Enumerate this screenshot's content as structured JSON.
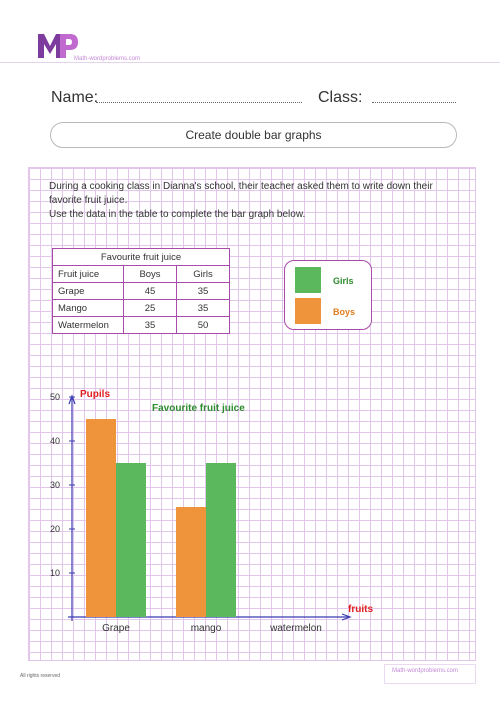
{
  "brand": {
    "logo": "MP",
    "site": "Math-wordproblems.com",
    "colors": {
      "purple": "#7e3b9e",
      "pink": "#c06ad0"
    }
  },
  "header": {
    "name_label": "Name:",
    "class_label": "Class:"
  },
  "worksheet": {
    "title": "Create double bar graphs",
    "instructions": [
      "During a cooking class in Dianna's school, their teacher asked them to write down their",
      "favorite fruit juice.",
      "Use the data in the table to complete the bar graph below."
    ]
  },
  "table": {
    "caption": "Favourite fruit juice",
    "headers": [
      "Fruit juice",
      "Boys",
      "Girls"
    ],
    "rows": [
      [
        "Grape",
        "45",
        "35"
      ],
      [
        "Mango",
        "25",
        "35"
      ],
      [
        "Watermelon",
        "35",
        "50"
      ]
    ]
  },
  "legend": {
    "items": [
      {
        "label": "Girls",
        "color": "#5cb85c",
        "text_color": "#2e8b2e"
      },
      {
        "label": "Boys",
        "color": "#f0943c",
        "text_color": "#e07b20"
      }
    ]
  },
  "chart_data": {
    "type": "bar",
    "title": "Favourite fruit juice",
    "ylabel": "Pupils",
    "xlabel": "fruits",
    "categories": [
      "Grape",
      "mango",
      "watermelon"
    ],
    "series": [
      {
        "name": "Boys",
        "color": "#f0943c",
        "values": [
          45,
          25,
          null
        ]
      },
      {
        "name": "Girls",
        "color": "#5cb85c",
        "values": [
          35,
          35,
          null
        ]
      }
    ],
    "yticks": [
      10,
      20,
      30,
      40,
      50
    ],
    "ylim": [
      0,
      50
    ],
    "grid": true,
    "colors": {
      "title": "#2e8b2e",
      "ylabel": "#e02020",
      "xlabel": "#e02020",
      "axis": "#3b3bb0"
    }
  },
  "footer": {
    "rights": "All rights reserved",
    "site": "Math-wordproblems.com"
  }
}
